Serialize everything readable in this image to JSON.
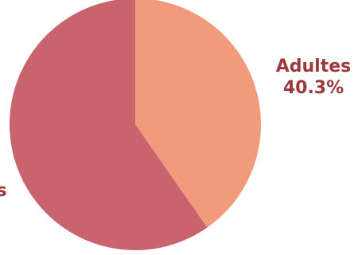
{
  "chart_data": {
    "type": "pie",
    "title": "",
    "slices": [
      {
        "label": "Adultes",
        "value": 40.3,
        "value_label": "40.3%",
        "color": "#F19A7C"
      },
      {
        "label": "",
        "value": 59.7,
        "color": "#C9636E"
      }
    ],
    "partial_label_tail": "s"
  },
  "colors": {
    "label_text": "#9B3A3C",
    "background": "#FFFFFF"
  }
}
